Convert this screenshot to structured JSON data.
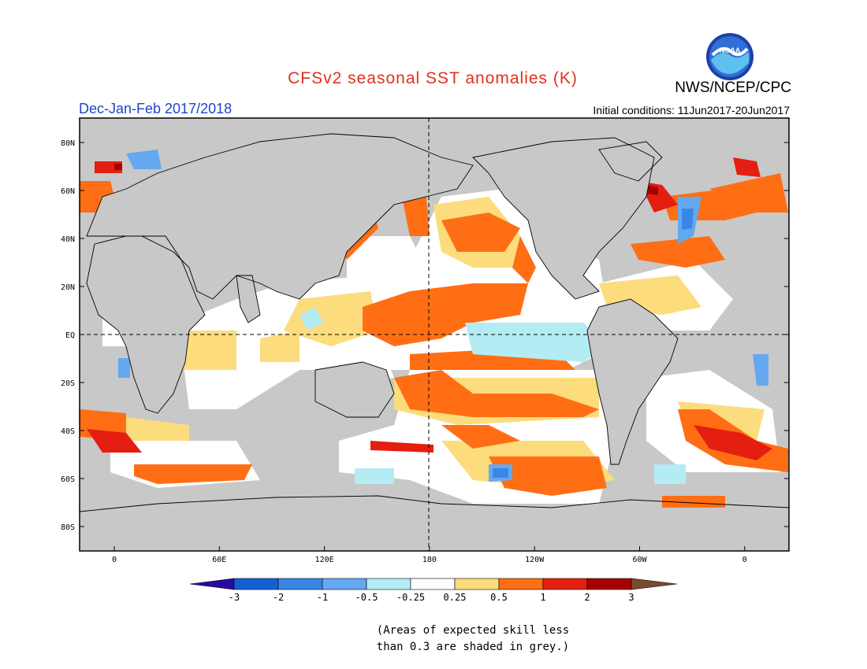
{
  "header": {
    "title": "CFSv2 seasonal SST anomalies (K)",
    "period": "Dec-Jan-Feb 2017/2018",
    "agency": "NWS/NCEP/CPC",
    "initial_conditions": "Initial conditions: 11Jun2017-20Jun2017",
    "logo_text": "NOAA"
  },
  "map": {
    "lon_labels": [
      "0",
      "60E",
      "120E",
      "180",
      "120W",
      "60W",
      "0"
    ],
    "lat_labels": [
      "80N",
      "60N",
      "40N",
      "20N",
      "EQ",
      "20S",
      "40S",
      "60S",
      "80S"
    ],
    "dashed_reference_lines": [
      "EQ",
      "180"
    ],
    "colors": {
      "land": "#c8c8c8",
      "low_skill": "#c8c8c8"
    }
  },
  "colorbar": {
    "labels": [
      "-3",
      "-2",
      "-1",
      "-0.5",
      "-0.25",
      "0.25",
      "0.5",
      "1",
      "2",
      "3"
    ],
    "colors": [
      "#2a0aa0",
      "#1560d4",
      "#3a86e8",
      "#64a8f0",
      "#b4ecf4",
      "#ffffff",
      "#fcdc7c",
      "#ff6e14",
      "#e41e10",
      "#a80000",
      "#7a4a32"
    ]
  },
  "note": {
    "line1": "(Areas of expected skill less",
    "line2": "than 0.3 are shaded in grey.)"
  }
}
